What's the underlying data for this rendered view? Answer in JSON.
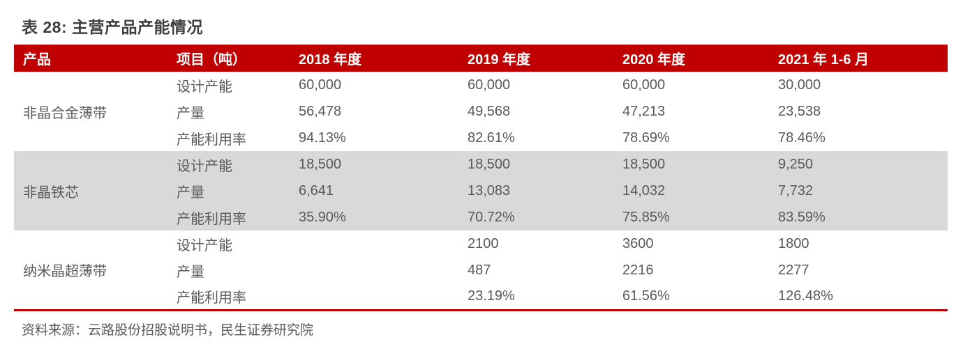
{
  "table": {
    "title": "表 28: 主营产品产能情况",
    "columns": [
      "产品",
      "项目（吨）",
      "2018 年度",
      "2019 年度",
      "2020 年度",
      "2021 年 1-6 月"
    ],
    "groups": [
      {
        "product": "非晶合金薄带",
        "rows": [
          {
            "item": "设计产能",
            "values": [
              "60,000",
              "60,000",
              "60,000",
              "30,000"
            ]
          },
          {
            "item": "产量",
            "values": [
              "56,478",
              "49,568",
              "47,213",
              "23,538"
            ]
          },
          {
            "item": "产能利用率",
            "values": [
              "94.13%",
              "82.61%",
              "78.69%",
              "78.46%"
            ]
          }
        ]
      },
      {
        "product": "非晶铁芯",
        "rows": [
          {
            "item": "设计产能",
            "values": [
              "18,500",
              "18,500",
              "18,500",
              "9,250"
            ]
          },
          {
            "item": "产量",
            "values": [
              "6,641",
              "13,083",
              "14,032",
              "7,732"
            ]
          },
          {
            "item": "产能利用率",
            "values": [
              "35.90%",
              "70.72%",
              "75.85%",
              "83.59%"
            ]
          }
        ]
      },
      {
        "product": "纳米晶超薄带",
        "rows": [
          {
            "item": "设计产能",
            "values": [
              "",
              "2100",
              "3600",
              "1800"
            ]
          },
          {
            "item": "产量",
            "values": [
              "",
              "487",
              "2216",
              "2277"
            ]
          },
          {
            "item": "产能利用率",
            "values": [
              "",
              "23.19%",
              "61.56%",
              "126.48%"
            ]
          }
        ]
      }
    ],
    "source": "资料来源：云路股份招股说明书，民生证券研究院"
  },
  "colors": {
    "header_bg": "#c00000",
    "header_text": "#ffffff",
    "alt_row_bg": "#d9d9d9",
    "bottom_rule": "#c00000",
    "body_text": "#595959",
    "title_text": "#3f3f3f"
  }
}
